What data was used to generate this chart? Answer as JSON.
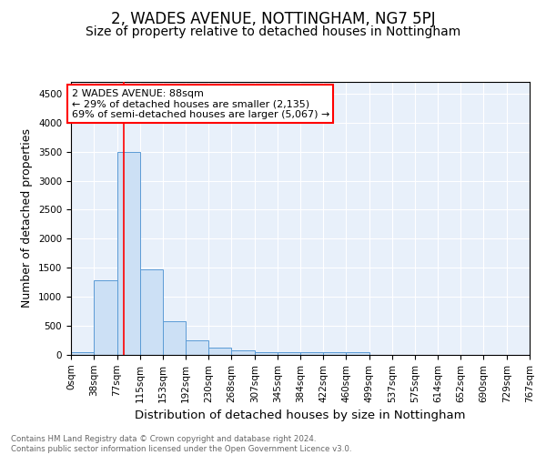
{
  "title": "2, WADES AVENUE, NOTTINGHAM, NG7 5PJ",
  "subtitle": "Size of property relative to detached houses in Nottingham",
  "xlabel": "Distribution of detached houses by size in Nottingham",
  "ylabel": "Number of detached properties",
  "bin_edges": [
    0,
    38,
    77,
    115,
    153,
    192,
    230,
    268,
    307,
    345,
    384,
    422,
    460,
    499,
    537,
    575,
    614,
    652,
    690,
    729,
    767
  ],
  "bar_heights": [
    50,
    1280,
    3500,
    1470,
    580,
    250,
    130,
    80,
    50,
    45,
    45,
    45,
    50,
    0,
    0,
    0,
    0,
    0,
    0,
    0
  ],
  "bar_color": "#cce0f5",
  "bar_edge_color": "#5b9bd5",
  "red_line_x": 88,
  "annotation_box_text": "2 WADES AVENUE: 88sqm\n← 29% of detached houses are smaller (2,135)\n69% of semi-detached houses are larger (5,067) →",
  "ylim": [
    0,
    4700
  ],
  "yticks": [
    0,
    500,
    1000,
    1500,
    2000,
    2500,
    3000,
    3500,
    4000,
    4500
  ],
  "bg_color": "#e8f0fa",
  "footer_line1": "Contains HM Land Registry data © Crown copyright and database right 2024.",
  "footer_line2": "Contains public sector information licensed under the Open Government Licence v3.0.",
  "title_fontsize": 12,
  "subtitle_fontsize": 10,
  "axis_label_fontsize": 9,
  "tick_fontsize": 7.5,
  "annotation_fontsize": 8
}
